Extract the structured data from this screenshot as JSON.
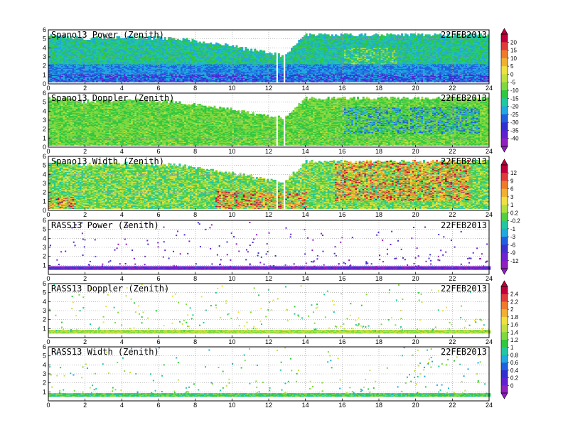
{
  "date_label": "22FEB2013",
  "chart_data": [
    {
      "type": "heatmap",
      "title": "Spano13 Power (Zenith)",
      "date": "22FEB2013",
      "xlim": [
        0,
        24
      ],
      "ylim": [
        0,
        6
      ],
      "xticks": [
        0,
        2,
        4,
        6,
        8,
        10,
        12,
        14,
        16,
        18,
        20,
        22,
        24
      ],
      "yticks": [
        0,
        1,
        2,
        3,
        4,
        5,
        6
      ],
      "grid": true,
      "colorbar_group": "power",
      "field": "power",
      "top_height_profile": [
        {
          "x": 0,
          "top": 5.6
        },
        {
          "x": 2,
          "top": 5.2
        },
        {
          "x": 4,
          "top": 5.4
        },
        {
          "x": 7,
          "top": 5.2
        },
        {
          "x": 10,
          "top": 4.3
        },
        {
          "x": 12.8,
          "top": 3.3
        },
        {
          "x": 14,
          "top": 5.6
        },
        {
          "x": 18,
          "top": 5.6
        },
        {
          "x": 24,
          "top": 5.6
        }
      ],
      "gaps": [
        [
          12.3,
          12.45
        ],
        [
          12.7,
          12.8
        ],
        [
          13.0,
          13.05
        ]
      ]
    },
    {
      "type": "heatmap",
      "title": "Spano13 Doppler (Zenith)",
      "date": "22FEB2013",
      "xlim": [
        0,
        24
      ],
      "ylim": [
        0,
        6
      ],
      "xticks": [
        0,
        2,
        4,
        6,
        8,
        10,
        12,
        14,
        16,
        18,
        20,
        22,
        24
      ],
      "yticks": [
        0,
        1,
        2,
        3,
        4,
        5,
        6
      ],
      "grid": true,
      "colorbar_group": "power",
      "field": "doppler",
      "top_height_profile": [
        {
          "x": 0,
          "top": 5.6
        },
        {
          "x": 2,
          "top": 5.2
        },
        {
          "x": 4,
          "top": 5.4
        },
        {
          "x": 7,
          "top": 5.2
        },
        {
          "x": 10,
          "top": 4.3
        },
        {
          "x": 12.8,
          "top": 3.3
        },
        {
          "x": 14,
          "top": 5.6
        },
        {
          "x": 18,
          "top": 5.6
        },
        {
          "x": 24,
          "top": 5.6
        }
      ],
      "gaps": [
        [
          12.3,
          12.45
        ],
        [
          12.7,
          12.8
        ],
        [
          13.0,
          13.05
        ]
      ]
    },
    {
      "type": "heatmap",
      "title": "Spano13 Width (Zenith)",
      "date": "22FEB2013",
      "xlim": [
        0,
        24
      ],
      "ylim": [
        0,
        6
      ],
      "xticks": [
        0,
        2,
        4,
        6,
        8,
        10,
        12,
        14,
        16,
        18,
        20,
        22,
        24
      ],
      "yticks": [
        0,
        1,
        2,
        3,
        4,
        5,
        6
      ],
      "grid": true,
      "colorbar_group": "width",
      "field": "width",
      "top_height_profile": [
        {
          "x": 0,
          "top": 5.6
        },
        {
          "x": 2,
          "top": 5.2
        },
        {
          "x": 4,
          "top": 5.4
        },
        {
          "x": 7,
          "top": 5.2
        },
        {
          "x": 10,
          "top": 4.3
        },
        {
          "x": 12.8,
          "top": 3.3
        },
        {
          "x": 14,
          "top": 5.6
        },
        {
          "x": 18,
          "top": 5.6
        },
        {
          "x": 24,
          "top": 5.6
        }
      ],
      "gaps": [
        [
          12.3,
          12.45
        ],
        [
          12.7,
          12.8
        ],
        [
          13.0,
          13.05
        ]
      ]
    },
    {
      "type": "scatter",
      "title": "RASS13 Power (Zenith)",
      "date": "22FEB2013",
      "xlim": [
        0,
        24
      ],
      "ylim": [
        0,
        6
      ],
      "xticks": [
        0,
        2,
        4,
        6,
        8,
        10,
        12,
        14,
        16,
        18,
        20,
        22,
        24
      ],
      "yticks": [
        1,
        2,
        3,
        4,
        5,
        6
      ],
      "grid": true,
      "colorbar_group": "width",
      "field": "rass_power",
      "band_height": [
        0.55,
        0.85
      ]
    },
    {
      "type": "scatter",
      "title": "RASS13 Doppler (Zenith)",
      "date": "22FEB2013",
      "xlim": [
        0,
        24
      ],
      "ylim": [
        0,
        6
      ],
      "xticks": [
        0,
        2,
        4,
        6,
        8,
        10,
        12,
        14,
        16,
        18,
        20,
        22,
        24
      ],
      "yticks": [
        1,
        2,
        3,
        4,
        5,
        6
      ],
      "grid": true,
      "colorbar_group": "rass",
      "field": "rass_doppler",
      "band_height": [
        0.5,
        0.8
      ]
    },
    {
      "type": "scatter",
      "title": "RASS13 Width (Zenith)",
      "date": "22FEB2013",
      "xlim": [
        0,
        24
      ],
      "ylim": [
        0,
        6
      ],
      "xticks": [
        0,
        2,
        4,
        6,
        8,
        10,
        12,
        14,
        16,
        18,
        20,
        22,
        24
      ],
      "yticks": [
        1,
        2,
        3,
        4,
        5,
        6
      ],
      "grid": true,
      "colorbar_group": "rass",
      "field": "rass_width",
      "band_height": [
        0.5,
        0.8
      ]
    }
  ],
  "colorbars": [
    {
      "id": "power",
      "labels": [
        "20",
        "15",
        "10",
        "5",
        "0",
        "-5",
        "-10",
        "-15",
        "-20",
        "-25",
        "-30",
        "-35",
        "-40"
      ],
      "colors": [
        "#c0003a",
        "#e03a3a",
        "#f07a2a",
        "#f0b030",
        "#f0e040",
        "#c0e040",
        "#80d840",
        "#30c840",
        "#20c8a0",
        "#20a8e0",
        "#2060e0",
        "#3030d0",
        "#6020d0",
        "#9020c0"
      ]
    },
    {
      "id": "width",
      "labels": [
        "12",
        "9",
        "6",
        "3",
        "1",
        "0.2",
        "-0.2",
        "-1",
        "-3",
        "-6",
        "-9",
        "-12"
      ],
      "colors": [
        "#c0003a",
        "#e03a3a",
        "#f07a2a",
        "#f0b030",
        "#f0e040",
        "#b0e040",
        "#50d040",
        "#20c8a0",
        "#20a8e0",
        "#2060e0",
        "#4030d0",
        "#7020d0",
        "#9020c0"
      ]
    },
    {
      "id": "rass",
      "labels": [
        "2.4",
        "2.2",
        "2",
        "1.8",
        "1.6",
        "1.4",
        "1.2",
        "1",
        "0.8",
        "0.6",
        "0.4",
        "0.2",
        "0"
      ],
      "colors": [
        "#c0003a",
        "#e03a3a",
        "#f07a2a",
        "#f0b030",
        "#f0e040",
        "#c0e040",
        "#80d840",
        "#30c840",
        "#20c8a0",
        "#20a8e0",
        "#2060e0",
        "#3030d0",
        "#6020d0",
        "#9020c0"
      ]
    }
  ]
}
